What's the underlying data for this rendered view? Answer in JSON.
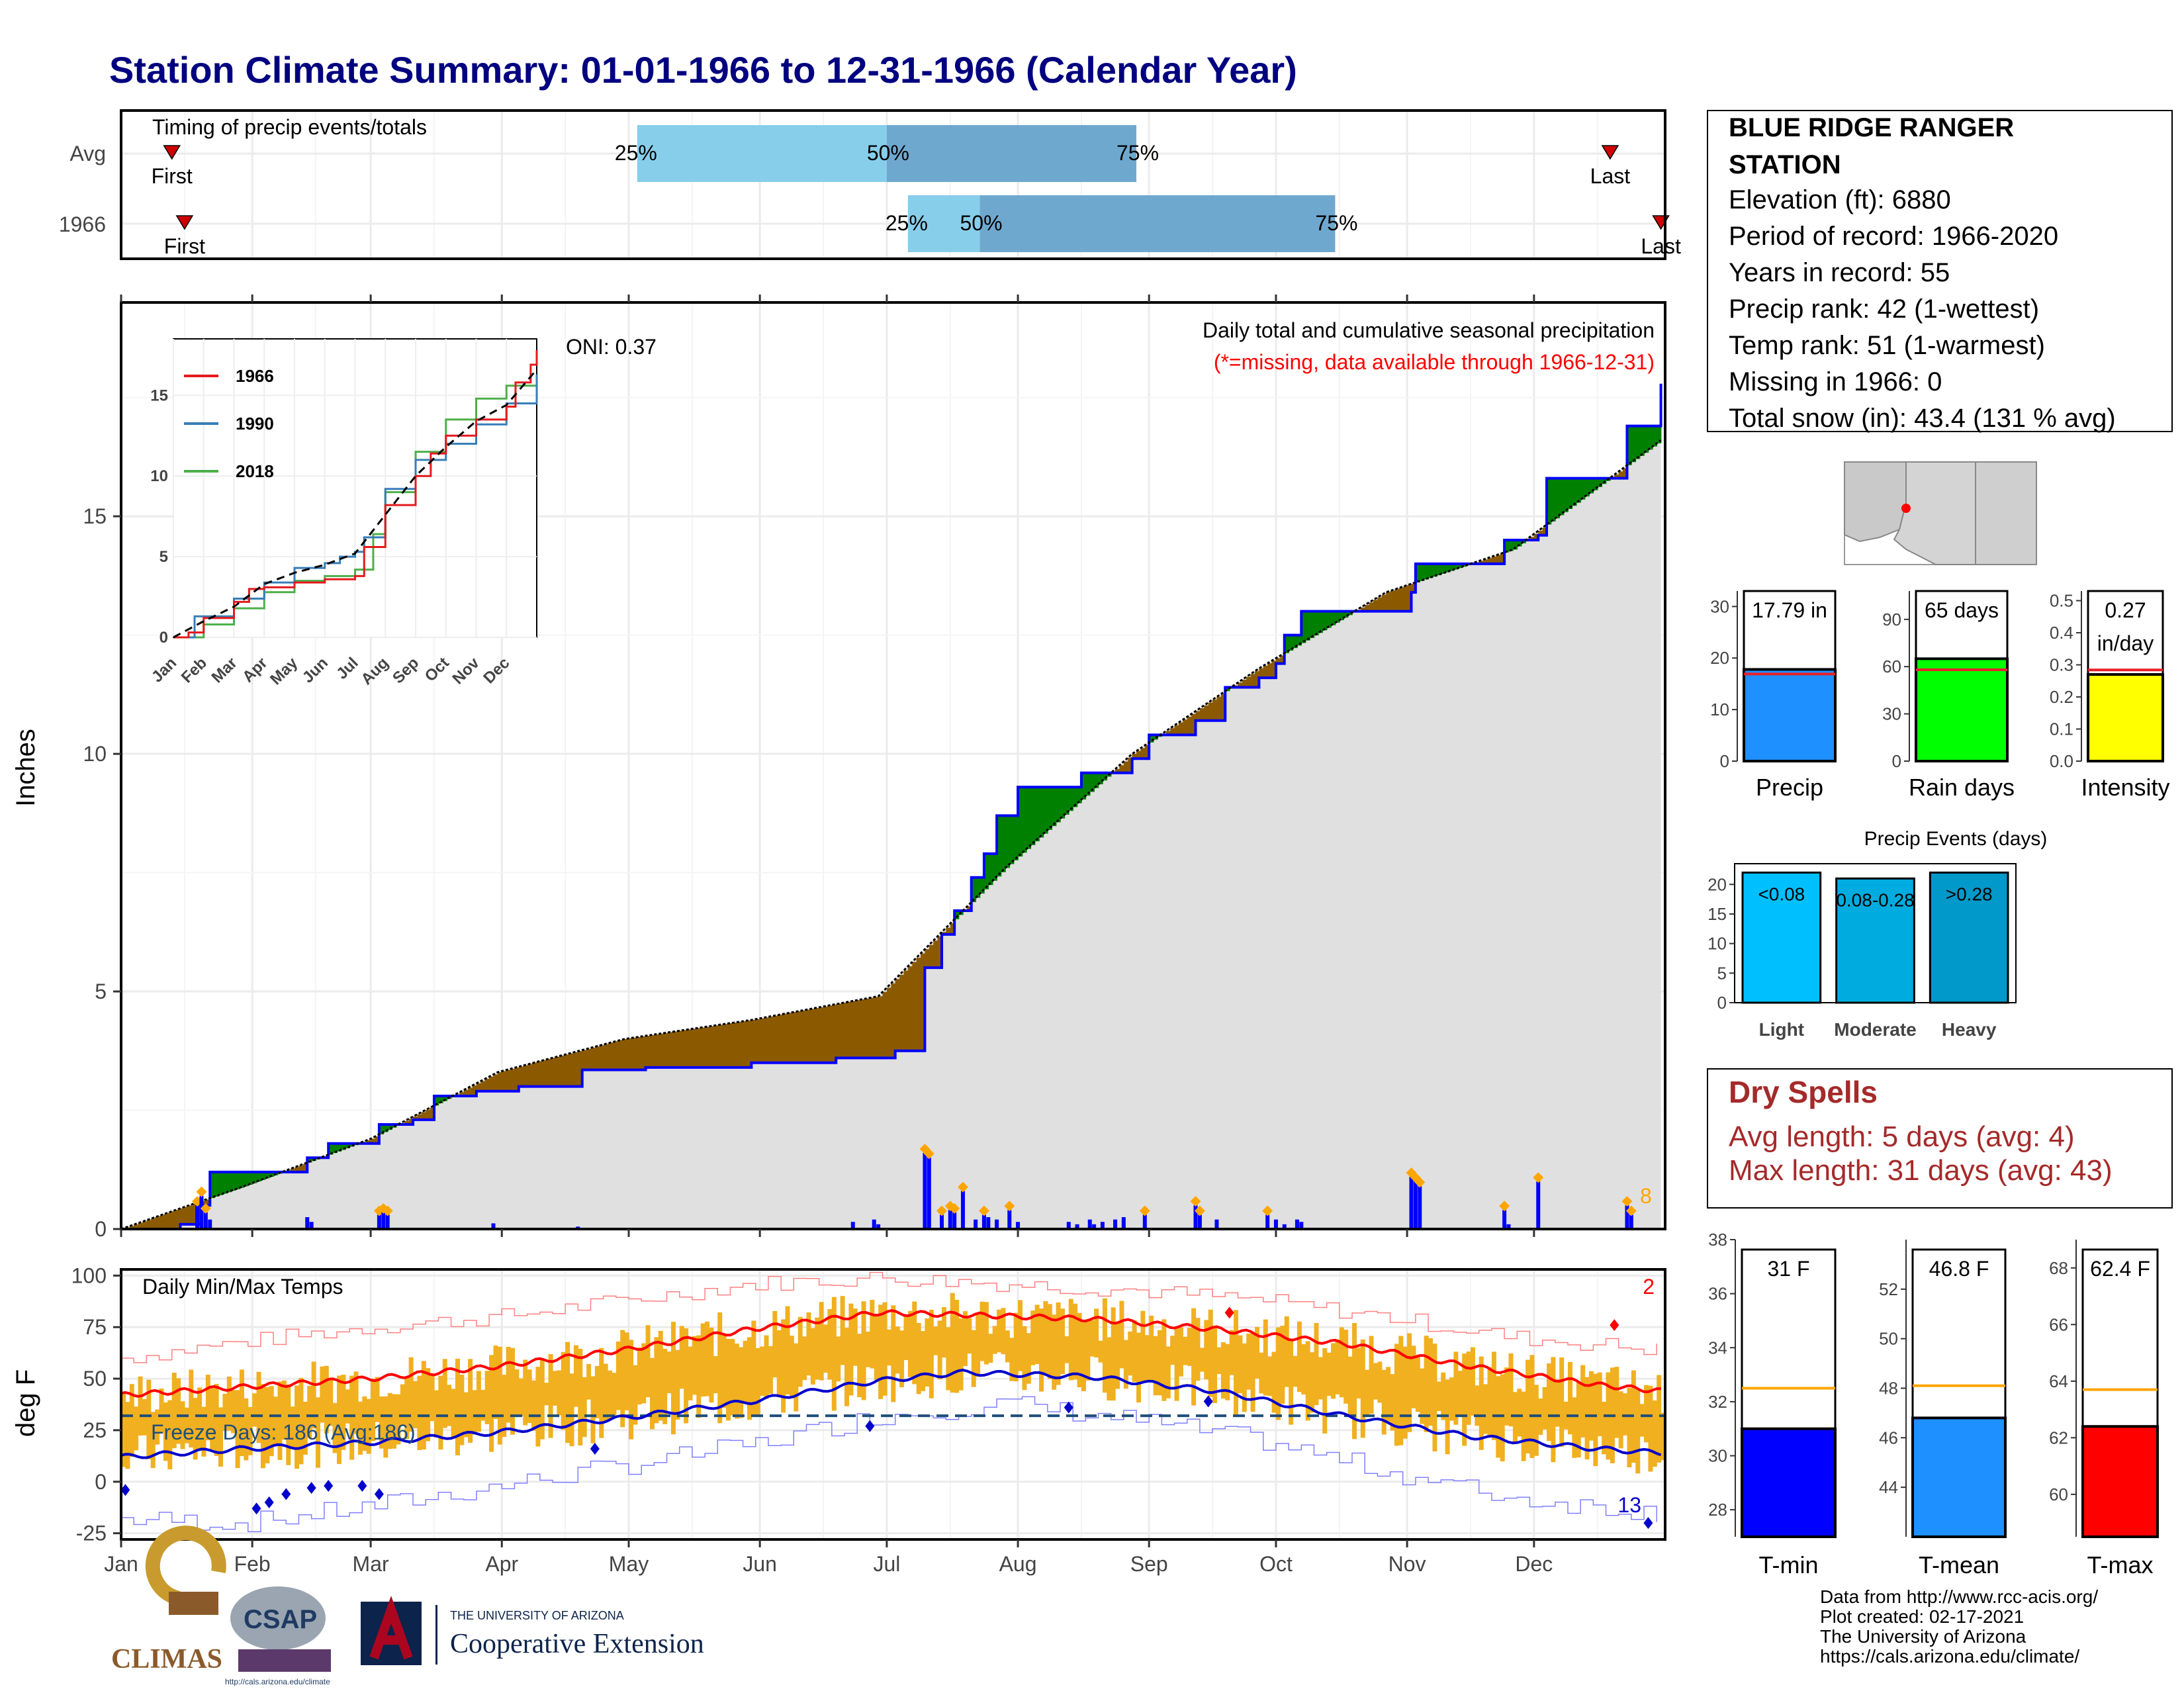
{
  "title": "Station Climate Summary: 01-01-1966 to 12-31-1966 (Calendar Year)",
  "colors": {
    "title": "#000080",
    "q_light": "#87ceeb",
    "q_dark": "#6fa8cf",
    "marker": "#d10000",
    "above_avg_fill": "#008000",
    "below_avg_fill": "#8b5a00",
    "cumulative_line": "#0000ff",
    "avg_area": "#e0e0e0",
    "daily_bar": "#0000ff",
    "temp_bar": "#f0b020",
    "tmax_avg": "#ff0000",
    "tmin_avg": "#0000cd",
    "freeze_line": "#1f4e79"
  },
  "timing_panel": {
    "label": "Timing of precip events/totals",
    "rows": [
      {
        "name": "Avg",
        "first_label": "First",
        "first_doy": 13,
        "last_label": "Last",
        "last_doy": 353,
        "q25_label": "25%",
        "q25_doy": 123,
        "q50_label": "50%",
        "q50_doy": 182,
        "q75_label": "75%",
        "q75_doy": 241
      },
      {
        "name": "1966",
        "first_label": "First",
        "first_doy": 16,
        "last_label": "Last",
        "last_doy": 365,
        "q25_label": "25%",
        "q25_doy": 187,
        "q50_label": "50%",
        "q50_doy": 204,
        "q75_label": "75%",
        "q75_doy": 288
      }
    ]
  },
  "precip_panel": {
    "ylabel": "Inches",
    "yticks": [
      "0",
      "5",
      "10",
      "15"
    ],
    "title_line1": "Daily total and cumulative seasonal precipitation",
    "title_line2": "(*=missing, data available through 1966-12-31)",
    "oni_label": "ONI: 0.37",
    "corner_count": "8"
  },
  "inset": {
    "xticks": [
      "Jan",
      "Feb",
      "Mar",
      "Apr",
      "May",
      "Jun",
      "Jul",
      "Aug",
      "Sep",
      "Oct",
      "Nov",
      "Dec"
    ],
    "yticks": [
      "0",
      "5",
      "10",
      "15"
    ],
    "legend": [
      {
        "name": "1966",
        "color": "#e41a1c"
      },
      {
        "name": "1990",
        "color": "#377eb8"
      },
      {
        "name": "2018",
        "color": "#4daf4a"
      }
    ]
  },
  "temp_panel": {
    "ylabel": "deg F",
    "yticks": [
      "-25",
      "0",
      "25",
      "50",
      "75",
      "100"
    ],
    "label": "Daily Min/Max Temps",
    "freeze_label": "Freeze Days: 186 (Avg:186)",
    "count_top": "2",
    "count_bottom": "13",
    "months": [
      "Jan",
      "Feb",
      "Mar",
      "Apr",
      "May",
      "Jun",
      "Jul",
      "Aug",
      "Sep",
      "Oct",
      "Nov",
      "Dec"
    ]
  },
  "station_info": {
    "name_line1": "BLUE RIDGE RANGER",
    "name_line2": "STATION",
    "lines": [
      "Elevation (ft): 6880",
      "Period of record: 1966-2020",
      "Years in record: 55",
      "Precip rank: 42 (1-wettest)",
      "Temp rank: 51 (1-warmest)",
      "Missing in 1966: 0",
      "Total snow (in): 43.4 (131 % avg)"
    ]
  },
  "summary_bars": [
    {
      "name": "Precip",
      "label_line1": "17.79 in",
      "label_line2": "",
      "value": 17.79,
      "avg": 16.9,
      "ymax": 33,
      "yticks": [
        "0",
        "10",
        "20",
        "30"
      ],
      "ytick_values": [
        0,
        10,
        20,
        30
      ],
      "color": "#1e90ff"
    },
    {
      "name": "Rain days",
      "label_line1": "65 days",
      "label_line2": "",
      "value": 65,
      "avg": 58,
      "ymax": 108,
      "yticks": [
        "0",
        "30",
        "60",
        "90"
      ],
      "ytick_values": [
        0,
        30,
        60,
        90
      ],
      "color": "#00ff00"
    },
    {
      "name": "Intensity",
      "label_line1": "0.27",
      "label_line2": "in/day",
      "value": 0.27,
      "avg": 0.284,
      "ymax": 0.53,
      "yticks": [
        "0.0",
        "0.1",
        "0.2",
        "0.3",
        "0.4",
        "0.5"
      ],
      "ytick_values": [
        0,
        0.1,
        0.2,
        0.3,
        0.4,
        0.5
      ],
      "color": "#ffff00"
    }
  ],
  "precip_events": {
    "title": "Precip Events (days)",
    "yticks": [
      "0",
      "5",
      "10",
      "15",
      "20"
    ],
    "categories": [
      "Light",
      "Moderate",
      "Heavy"
    ],
    "labels": [
      "<0.08",
      "0.08-0.28",
      ">0.28"
    ],
    "values": [
      22,
      21,
      22
    ],
    "colors": [
      "#00bfff",
      "#00acdf",
      "#0099c9"
    ]
  },
  "dry_spells": {
    "title": "Dry Spells",
    "avg_line": "Avg length: 5 days (avg: 4)",
    "max_line": "Max length: 31 days (avg: 43)"
  },
  "temp_summary": [
    {
      "name": "T-min",
      "label": "31 F",
      "value": 31,
      "avg": 32.5,
      "ymin": 27,
      "ymax": 38,
      "yticks": [
        "28",
        "30",
        "32",
        "34",
        "36",
        "38"
      ],
      "ytick_values": [
        28,
        30,
        32,
        34,
        36,
        38
      ],
      "color": "#0000ff"
    },
    {
      "name": "T-mean",
      "label": "46.8 F",
      "value": 46.8,
      "avg": 48.1,
      "ymin": 42,
      "ymax": 54,
      "yticks": [
        "44",
        "46",
        "48",
        "50",
        "52"
      ],
      "ytick_values": [
        44,
        46,
        48,
        50,
        52
      ],
      "color": "#1e90ff"
    },
    {
      "name": "T-max",
      "label": "62.4 F",
      "value": 62.4,
      "avg": 63.7,
      "ymin": 58.5,
      "ymax": 69,
      "yticks": [
        "60",
        "62",
        "64",
        "66",
        "68"
      ],
      "ytick_values": [
        60,
        62,
        64,
        66,
        68
      ],
      "color": "#ff0000"
    }
  ],
  "logos": {
    "climas": "CLIMAS",
    "csap": "CSAP",
    "csap_url": "http://cals.arizona.edu/climate",
    "ua_small": "THE UNIVERSITY OF ARIZONA",
    "ua_big": "Cooperative Extension"
  },
  "footer": [
    "Data from http://www.rcc-acis.org/",
    "Plot created: 02-17-2021",
    "The University of Arizona",
    "https://cals.arizona.edu/climate/"
  ],
  "chart_data": [
    {
      "type": "area",
      "name": "Daily total and cumulative seasonal precipitation",
      "x_unit": "day of year",
      "cumulative_1966": [
        [
          1,
          0
        ],
        [
          15,
          0.1
        ],
        [
          20,
          0.5
        ],
        [
          22,
          1.2
        ],
        [
          40,
          1.2
        ],
        [
          45,
          1.5
        ],
        [
          50,
          1.8
        ],
        [
          60,
          1.8
        ],
        [
          62,
          2.2
        ],
        [
          70,
          2.3
        ],
        [
          75,
          2.8
        ],
        [
          85,
          2.9
        ],
        [
          95,
          3.0
        ],
        [
          110,
          3.35
        ],
        [
          125,
          3.4
        ],
        [
          150,
          3.5
        ],
        [
          170,
          3.6
        ],
        [
          184,
          3.75
        ],
        [
          190,
          3.75
        ],
        [
          191,
          5.5
        ],
        [
          195,
          6.2
        ],
        [
          198,
          6.7
        ],
        [
          202,
          7.4
        ],
        [
          205,
          7.9
        ],
        [
          208,
          8.7
        ],
        [
          213,
          9.3
        ],
        [
          225,
          9.3
        ],
        [
          228,
          9.6
        ],
        [
          240,
          9.9
        ],
        [
          244,
          10.4
        ],
        [
          255,
          10.7
        ],
        [
          262,
          11.4
        ],
        [
          270,
          11.6
        ],
        [
          274,
          11.9
        ],
        [
          276,
          12.5
        ],
        [
          280,
          13.0
        ],
        [
          296,
          13.0
        ],
        [
          306,
          13.4
        ],
        [
          307,
          14.0
        ],
        [
          325,
          14.0
        ],
        [
          328,
          14.5
        ],
        [
          336,
          14.6
        ],
        [
          338,
          15.8
        ],
        [
          353,
          15.8
        ],
        [
          357,
          16.9
        ],
        [
          365,
          17.79
        ]
      ],
      "cumulative_avg": [
        [
          1,
          0
        ],
        [
          30,
          0.9
        ],
        [
          60,
          1.9
        ],
        [
          90,
          3.3
        ],
        [
          120,
          4.0
        ],
        [
          150,
          4.4
        ],
        [
          180,
          4.9
        ],
        [
          190,
          5.8
        ],
        [
          210,
          7.6
        ],
        [
          240,
          10.0
        ],
        [
          270,
          11.8
        ],
        [
          300,
          13.4
        ],
        [
          330,
          14.3
        ],
        [
          365,
          16.6
        ]
      ],
      "daily_1966": [
        [
          19,
          0.5
        ],
        [
          20,
          0.7
        ],
        [
          21,
          0.35
        ],
        [
          22,
          0.2
        ],
        [
          45,
          0.25
        ],
        [
          46,
          0.15
        ],
        [
          62,
          0.3
        ],
        [
          63,
          0.35
        ],
        [
          64,
          0.3
        ],
        [
          89,
          0.12
        ],
        [
          109,
          0.05
        ],
        [
          174,
          0.15
        ],
        [
          179,
          0.2
        ],
        [
          180,
          0.1
        ],
        [
          191,
          1.6
        ],
        [
          192,
          1.5
        ],
        [
          195,
          0.3
        ],
        [
          197,
          0.4
        ],
        [
          198,
          0.35
        ],
        [
          200,
          0.8
        ],
        [
          203,
          0.2
        ],
        [
          205,
          0.3
        ],
        [
          206,
          0.25
        ],
        [
          208,
          0.2
        ],
        [
          211,
          0.4
        ],
        [
          213,
          0.15
        ],
        [
          225,
          0.15
        ],
        [
          227,
          0.1
        ],
        [
          230,
          0.2
        ],
        [
          231,
          0.1
        ],
        [
          233,
          0.15
        ],
        [
          236,
          0.2
        ],
        [
          238,
          0.25
        ],
        [
          243,
          0.3
        ],
        [
          255,
          0.5
        ],
        [
          256,
          0.3
        ],
        [
          260,
          0.2
        ],
        [
          272,
          0.3
        ],
        [
          274,
          0.2
        ],
        [
          276,
          0.1
        ],
        [
          279,
          0.2
        ],
        [
          280,
          0.15
        ],
        [
          306,
          1.1
        ],
        [
          307,
          1.0
        ],
        [
          308,
          0.9
        ],
        [
          328,
          0.4
        ],
        [
          329,
          0.1
        ],
        [
          336,
          1.0
        ],
        [
          357,
          0.5
        ],
        [
          358,
          0.3
        ]
      ],
      "ylim": [
        0,
        19.5
      ]
    },
    {
      "type": "line",
      "name": "Daily Min/Max Temps",
      "x_unit": "day of year",
      "avg_tmax": [
        [
          1,
          42
        ],
        [
          30,
          46
        ],
        [
          60,
          50
        ],
        [
          90,
          56
        ],
        [
          120,
          64
        ],
        [
          150,
          74
        ],
        [
          180,
          82
        ],
        [
          200,
          81
        ],
        [
          230,
          79
        ],
        [
          260,
          74
        ],
        [
          290,
          67
        ],
        [
          320,
          56
        ],
        [
          350,
          47
        ],
        [
          365,
          44
        ]
      ],
      "avg_tmin": [
        [
          1,
          12
        ],
        [
          30,
          16
        ],
        [
          60,
          19
        ],
        [
          90,
          24
        ],
        [
          120,
          31
        ],
        [
          150,
          39
        ],
        [
          180,
          49
        ],
        [
          200,
          53
        ],
        [
          230,
          51
        ],
        [
          260,
          44
        ],
        [
          290,
          32
        ],
        [
          320,
          22
        ],
        [
          350,
          16
        ],
        [
          365,
          14
        ]
      ],
      "record_high": [
        [
          1,
          60
        ],
        [
          30,
          68
        ],
        [
          60,
          75
        ],
        [
          90,
          80
        ],
        [
          120,
          88
        ],
        [
          150,
          96
        ],
        [
          180,
          99
        ],
        [
          210,
          96
        ],
        [
          240,
          93
        ],
        [
          270,
          88
        ],
        [
          300,
          80
        ],
        [
          330,
          70
        ],
        [
          365,
          64
        ]
      ],
      "record_low": [
        [
          1,
          -18
        ],
        [
          30,
          -20
        ],
        [
          60,
          -12
        ],
        [
          90,
          -2
        ],
        [
          120,
          8
        ],
        [
          150,
          18
        ],
        [
          180,
          32
        ],
        [
          210,
          38
        ],
        [
          240,
          30
        ],
        [
          270,
          20
        ],
        [
          300,
          5
        ],
        [
          330,
          -8
        ],
        [
          365,
          -15
        ]
      ],
      "freeze_threshold_F": 32,
      "ylim": [
        -28,
        103
      ]
    }
  ]
}
